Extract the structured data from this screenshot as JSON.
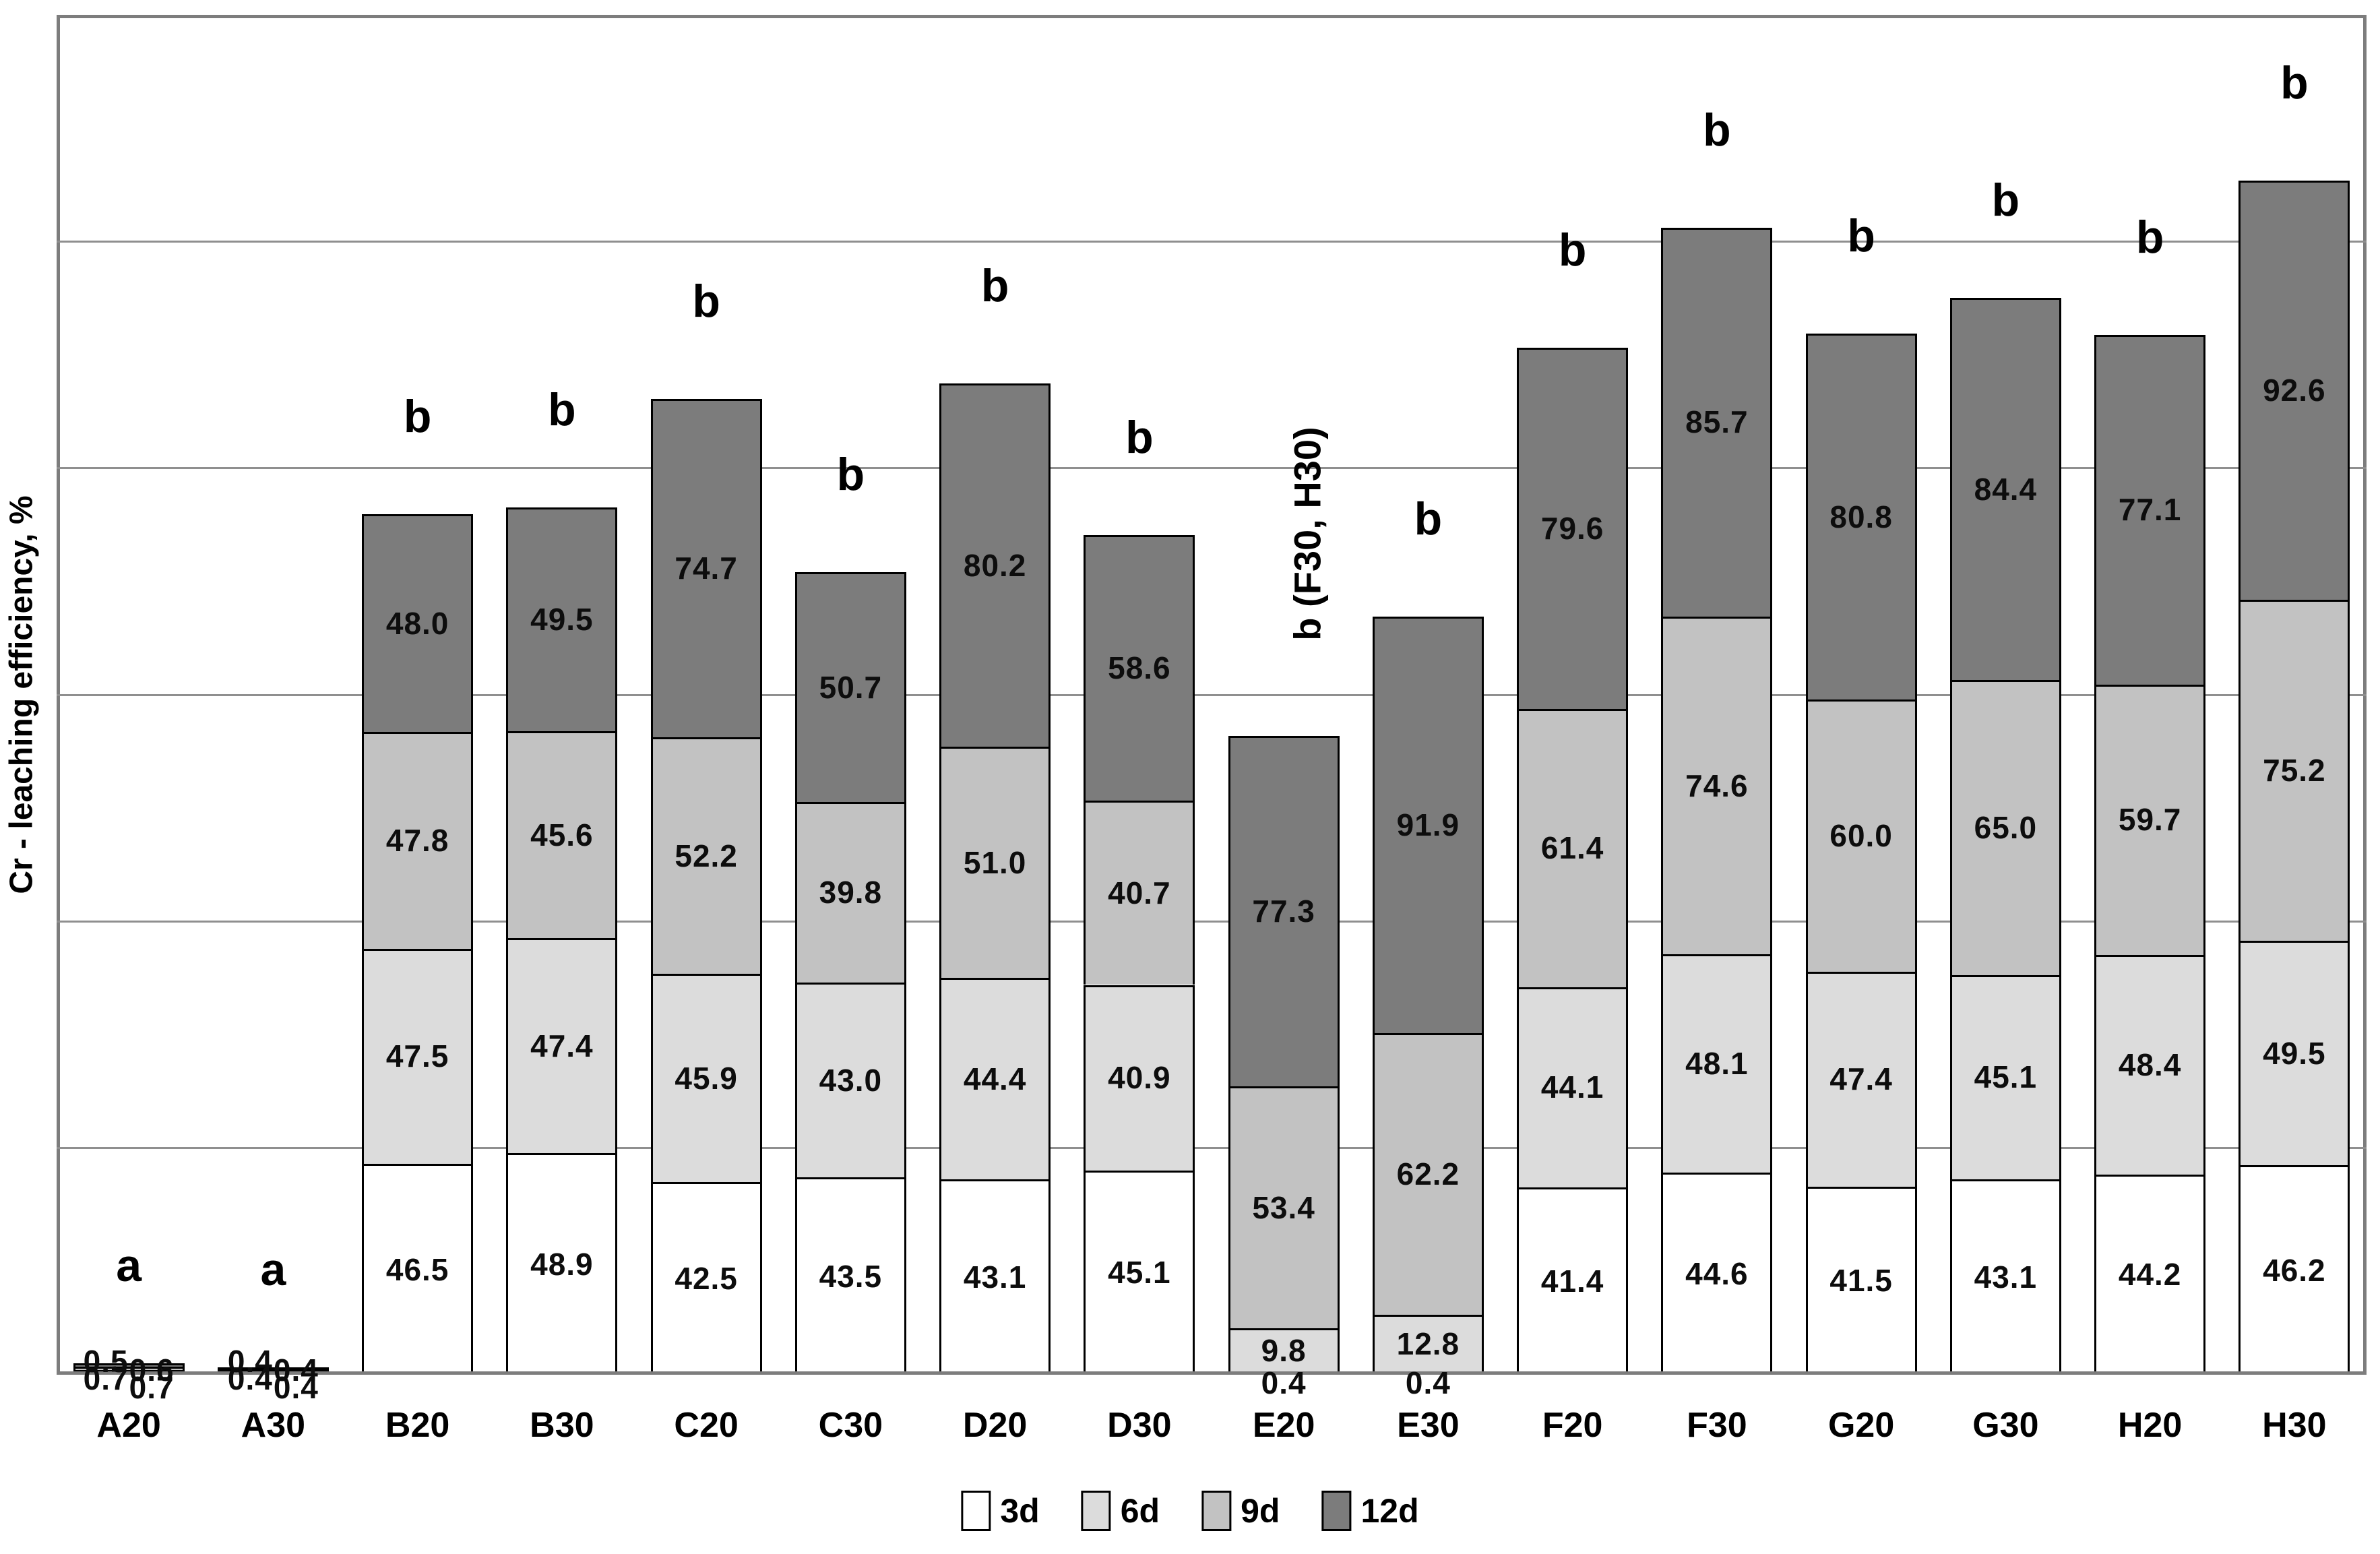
{
  "chart_data": {
    "type": "bar",
    "stacked": true,
    "title": "",
    "xlabel": "",
    "ylabel": "Cr - leaching efficiency, %",
    "ylim": [
      0,
      300
    ],
    "gridline_step": 50,
    "grid": "horizontal",
    "y_tick_labels_shown": false,
    "legend_position": "bottom",
    "categories": [
      "A20",
      "A30",
      "B20",
      "B30",
      "C20",
      "C30",
      "D20",
      "D30",
      "E20",
      "E30",
      "F20",
      "F30",
      "G20",
      "G30",
      "H20",
      "H30"
    ],
    "series": [
      {
        "name": "3d",
        "color": "#ffffff",
        "values": [
          0.5,
          0.4,
          46.5,
          48.9,
          42.5,
          43.5,
          43.1,
          45.1,
          0.4,
          0.4,
          41.4,
          44.6,
          41.5,
          43.1,
          44.2,
          46.2
        ]
      },
      {
        "name": "6d",
        "color": "#dcdcdc",
        "values": [
          0.6,
          0.4,
          47.5,
          47.4,
          45.9,
          43.0,
          44.4,
          40.9,
          9.8,
          12.8,
          44.1,
          48.1,
          47.4,
          45.1,
          48.4,
          49.5
        ]
      },
      {
        "name": "9d",
        "color": "#c2c2c2",
        "values": [
          0.7,
          0.4,
          47.8,
          45.6,
          52.2,
          39.8,
          51.0,
          40.7,
          53.4,
          62.2,
          61.4,
          74.6,
          60.0,
          65.0,
          59.7,
          75.2
        ]
      },
      {
        "name": "12d",
        "color": "#7c7c7c",
        "values": [
          0.7,
          0.4,
          48.0,
          49.5,
          74.7,
          50.7,
          80.2,
          58.6,
          77.3,
          91.9,
          79.6,
          85.7,
          80.8,
          84.4,
          77.1,
          92.6
        ]
      }
    ],
    "significance_labels": [
      {
        "category": "A20",
        "text": "a",
        "rotated": false
      },
      {
        "category": "A30",
        "text": "a",
        "rotated": false
      },
      {
        "category": "B20",
        "text": "b",
        "rotated": false
      },
      {
        "category": "B30",
        "text": "b",
        "rotated": false
      },
      {
        "category": "C20",
        "text": "b",
        "rotated": false
      },
      {
        "category": "C30",
        "text": "b",
        "rotated": false
      },
      {
        "category": "D20",
        "text": "b",
        "rotated": false
      },
      {
        "category": "D30",
        "text": "b",
        "rotated": false
      },
      {
        "category": "E20",
        "text": "b (F30, H30)",
        "rotated": true
      },
      {
        "category": "E30",
        "text": "b",
        "rotated": false
      },
      {
        "category": "F20",
        "text": "b",
        "rotated": false
      },
      {
        "category": "F30",
        "text": "b",
        "rotated": false
      },
      {
        "category": "G20",
        "text": "b",
        "rotated": false
      },
      {
        "category": "G30",
        "text": "b",
        "rotated": false
      },
      {
        "category": "H20",
        "text": "b",
        "rotated": false
      },
      {
        "category": "H30",
        "text": "b",
        "rotated": false
      }
    ],
    "colors": {
      "bar_border": "#000000",
      "gridline": "#8f8f8f",
      "plot_border": "#7d7d7d",
      "text": "#000000"
    }
  }
}
